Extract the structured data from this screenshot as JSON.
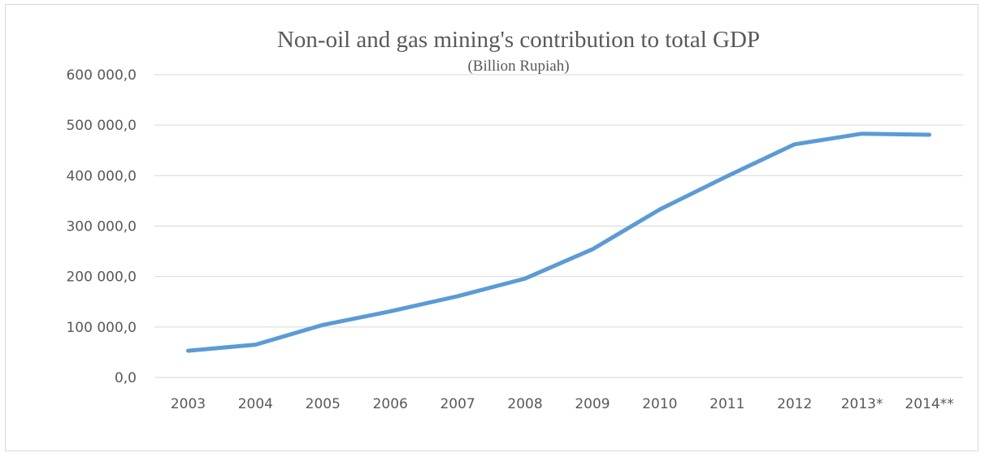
{
  "chart_data": {
    "type": "line",
    "title": "Non-oil and gas mining's contribution to total GDP",
    "subtitle": "(Billion Rupiah)",
    "xlabel": "",
    "ylabel": "",
    "categories": [
      "2003",
      "2004",
      "2005",
      "2006",
      "2007",
      "2008",
      "2009",
      "2010",
      "2011",
      "2012",
      "2013*",
      "2014**"
    ],
    "series": [
      {
        "values": [
          53000,
          65000,
          104000,
          131000,
          161000,
          196000,
          254000,
          333000,
          399000,
          462000,
          483000,
          481000
        ],
        "color": "#5b9bd5"
      }
    ],
    "ylim": [
      0,
      600000
    ],
    "yticks": [
      0,
      100000,
      200000,
      300000,
      400000,
      500000,
      600000
    ],
    "ytick_labels": [
      "0,0",
      "100 000,0",
      "200 000,0",
      "300 000,0",
      "400 000,0",
      "500 000,0",
      "600 000,0"
    ],
    "grid": true,
    "legend": "none"
  }
}
